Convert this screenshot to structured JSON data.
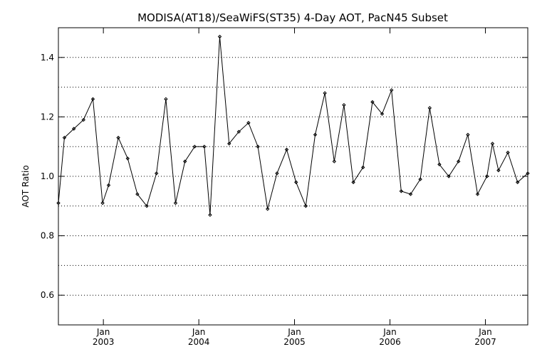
{
  "chart_data": {
    "type": "line",
    "title": "MODISA(AT18)/SeaWiFS(ST35) 4-Day AOT, PacN45 Subset",
    "xlabel": "",
    "ylabel": "AOT Ratio",
    "ylim": [
      0.5,
      1.5
    ],
    "yticks": [
      "0.6",
      "0.8",
      "1.0",
      "1.2",
      "1.4"
    ],
    "xlim": [
      "2002-07-13",
      "2007-06-12"
    ],
    "xticks": [
      {
        "date": "2003-01-01",
        "month": "Jan",
        "year": "2003"
      },
      {
        "date": "2004-01-01",
        "month": "Jan",
        "year": "2004"
      },
      {
        "date": "2005-01-01",
        "month": "Jan",
        "year": "2005"
      },
      {
        "date": "2006-01-01",
        "month": "Jan",
        "year": "2006"
      },
      {
        "date": "2007-01-01",
        "month": "Jan",
        "year": "2007"
      }
    ],
    "grid": "horizontal-dotted",
    "legend": "none",
    "series": [
      {
        "x": [
          "2002-07-13",
          "2002-08-05",
          "2002-09-10",
          "2002-10-17",
          "2002-11-22",
          "2002-12-29",
          "2003-01-21",
          "2003-02-27",
          "2003-04-04",
          "2003-05-11",
          "2003-06-16",
          "2003-07-23",
          "2003-08-28",
          "2003-10-04",
          "2003-11-09",
          "2003-12-16",
          "2004-01-22",
          "2004-02-13",
          "2004-03-21",
          "2004-04-26",
          "2004-06-02",
          "2004-07-09",
          "2004-08-14",
          "2004-09-20",
          "2004-10-26",
          "2004-12-02",
          "2005-01-07",
          "2005-02-13",
          "2005-03-21",
          "2005-04-27",
          "2005-06-02",
          "2005-07-09",
          "2005-08-14",
          "2005-09-20",
          "2005-10-26",
          "2005-12-02",
          "2006-01-07",
          "2006-02-13",
          "2006-03-21",
          "2006-04-27",
          "2006-06-02",
          "2006-07-09",
          "2006-08-14",
          "2006-09-20",
          "2006-10-26",
          "2006-12-02",
          "2007-01-07",
          "2007-01-28",
          "2007-02-20",
          "2007-03-28",
          "2007-05-04",
          "2007-06-12"
        ],
        "y": [
          0.91,
          1.13,
          1.16,
          1.19,
          1.26,
          0.91,
          0.97,
          1.13,
          1.06,
          0.94,
          0.9,
          1.01,
          1.26,
          0.91,
          1.05,
          1.1,
          1.1,
          0.87,
          1.47,
          1.11,
          1.15,
          1.18,
          1.1,
          0.89,
          1.01,
          1.09,
          0.98,
          0.9,
          1.14,
          1.28,
          1.05,
          1.24,
          0.98,
          1.03,
          1.25,
          1.21,
          1.29,
          0.95,
          0.94,
          0.99,
          1.23,
          1.04,
          1.0,
          1.05,
          1.14,
          0.94,
          1.0,
          1.11,
          1.02,
          1.08,
          0.98,
          1.01
        ]
      }
    ]
  }
}
